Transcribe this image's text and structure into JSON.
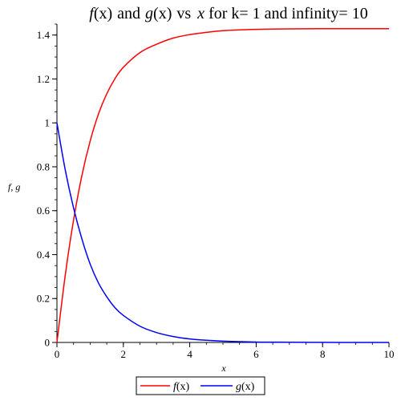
{
  "chart_data": {
    "type": "line",
    "title": {
      "f": "f",
      "fx": "(x)",
      "and": "and",
      "g": "g",
      "gx": "(x)",
      "vs": "vs",
      "x": "x",
      "rest": "for k= 1 and infinity= 10"
    },
    "xlabel": "x",
    "ylabel": "f, g",
    "xlim": [
      0,
      10
    ],
    "ylim": [
      0,
      1.45
    ],
    "x_ticks": [
      0,
      2,
      4,
      6,
      8,
      10
    ],
    "x_tick_labels": [
      "0",
      "2",
      "4",
      "6",
      "8",
      "10"
    ],
    "y_ticks": [
      0,
      0.2,
      0.4,
      0.6,
      0.8,
      1,
      1.2,
      1.4
    ],
    "y_tick_labels": [
      "0",
      "0.2",
      "0.4",
      "0.6",
      "0.8",
      "1",
      "1.2",
      "1.4"
    ],
    "x_minor_step": 0.5,
    "y_minor_step": 0.05,
    "grid": false,
    "legend_position": "bottom-center",
    "x": [
      0,
      0.25,
      0.5,
      0.75,
      1,
      1.25,
      1.5,
      1.75,
      2,
      2.5,
      3,
      3.5,
      4,
      4.5,
      5,
      6,
      7,
      8,
      9,
      10
    ],
    "series": [
      {
        "name": "f(x)",
        "color": "#ff0000",
        "values": [
          0,
          0.306,
          0.557,
          0.759,
          0.917,
          1.04,
          1.132,
          1.202,
          1.253,
          1.32,
          1.358,
          1.386,
          1.402,
          1.412,
          1.42,
          1.426,
          1.428,
          1.429,
          1.429,
          1.429
        ]
      },
      {
        "name": "g(x)",
        "color": "#0000ff",
        "values": [
          1,
          0.786,
          0.613,
          0.472,
          0.357,
          0.271,
          0.208,
          0.158,
          0.123,
          0.074,
          0.045,
          0.027,
          0.016,
          0.01,
          0.006,
          0.002,
          0.001,
          0.0003,
          0.0001,
          0.0001
        ]
      }
    ],
    "legend": [
      {
        "name_main": "f",
        "name_arg": "(x)",
        "color": "#ff0000"
      },
      {
        "name_main": "g",
        "name_arg": "(x)",
        "color": "#0000ff"
      }
    ]
  }
}
